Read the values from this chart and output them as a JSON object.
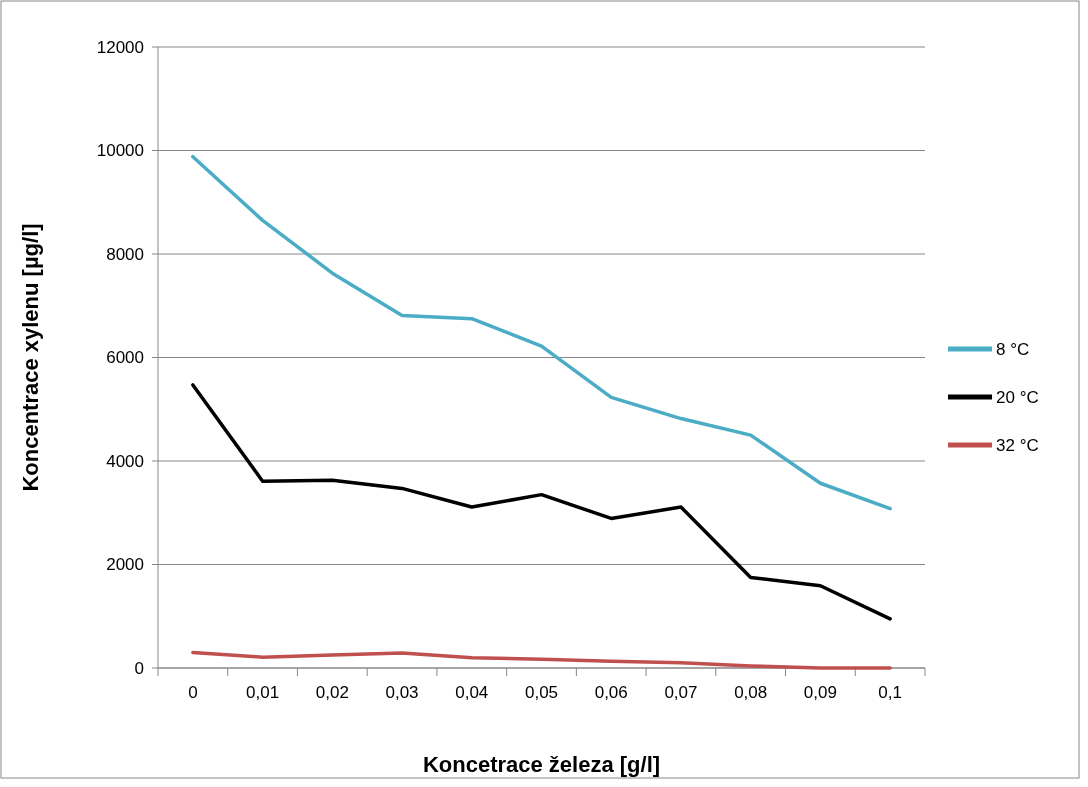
{
  "chart_data": {
    "type": "line",
    "xlabel": "Koncetrace železa [g/l]",
    "ylabel": "Koncentrace xylenu [µg/l]",
    "categories": [
      "0",
      "0,01",
      "0,02",
      "0,03",
      "0,04",
      "0,05",
      "0,06",
      "0,07",
      "0,08",
      "0,09",
      "0,1"
    ],
    "series": [
      {
        "name": "8 °C",
        "color": "#4bacc6",
        "values": [
          9880,
          8650,
          7630,
          6810,
          6750,
          6220,
          5230,
          4820,
          4500,
          3570,
          3080
        ]
      },
      {
        "name": "20 °C",
        "color": "#000000",
        "values": [
          5470,
          3610,
          3630,
          3470,
          3110,
          3350,
          2890,
          3110,
          1750,
          1590,
          950
        ]
      },
      {
        "name": "32 °C",
        "color": "#c0504d",
        "values": [
          300,
          210,
          250,
          290,
          200,
          170,
          130,
          100,
          40,
          0,
          0
        ]
      }
    ],
    "ylim": [
      0,
      12000
    ],
    "yticks": [
      0,
      2000,
      4000,
      6000,
      8000,
      10000,
      12000
    ],
    "grid": "y",
    "legend": "right",
    "marker": "none",
    "line_style": "solid"
  }
}
